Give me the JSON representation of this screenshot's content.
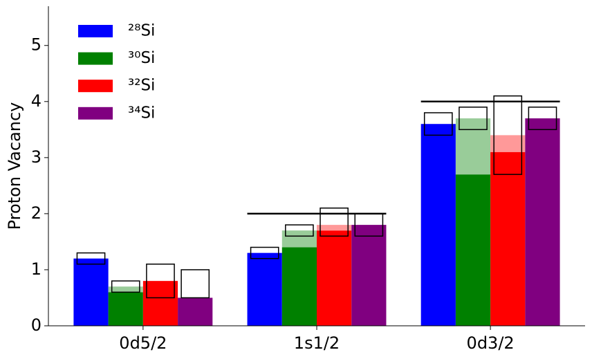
{
  "chart_data": {
    "type": "bar",
    "y_label": "Proton Vacancy",
    "categories": [
      "0d5/2",
      "1s1/2",
      "0d3/2"
    ],
    "ylim": [
      0,
      5.7
    ],
    "yticks": [
      0,
      1,
      2,
      3,
      4,
      5
    ],
    "legend": "upper left",
    "reference_values": [
      null,
      2,
      4
    ],
    "series": [
      {
        "name": "²⁸Si",
        "color": "#0000ff",
        "light_color": "#9999ff",
        "values": [
          1.2,
          1.3,
          3.6
        ],
        "upper_values": [
          null,
          null,
          null
        ],
        "ranges": [
          [
            1.1,
            1.3
          ],
          [
            1.2,
            1.4
          ],
          [
            3.4,
            3.8
          ]
        ]
      },
      {
        "name": "³⁰Si",
        "color": "#008000",
        "light_color": "#99cc99",
        "values": [
          0.6,
          1.4,
          2.7
        ],
        "upper_values": [
          0.7,
          1.7,
          3.7
        ],
        "ranges": [
          [
            0.6,
            0.8
          ],
          [
            1.6,
            1.8
          ],
          [
            3.5,
            3.9
          ]
        ]
      },
      {
        "name": "³²Si",
        "color": "#ff0000",
        "light_color": "#ff9999",
        "values": [
          0.8,
          1.7,
          3.1
        ],
        "upper_values": [
          null,
          1.8,
          3.4
        ],
        "ranges": [
          [
            0.5,
            1.1
          ],
          [
            1.6,
            2.1
          ],
          [
            2.7,
            4.1
          ]
        ]
      },
      {
        "name": "³⁴Si",
        "color": "#800080",
        "light_color": "#cc99cc",
        "values": [
          0.5,
          1.8,
          3.7
        ],
        "upper_values": [
          null,
          null,
          null
        ],
        "ranges": [
          [
            0.5,
            1.0
          ],
          [
            1.6,
            2.0
          ],
          [
            3.5,
            3.9
          ]
        ]
      }
    ]
  }
}
